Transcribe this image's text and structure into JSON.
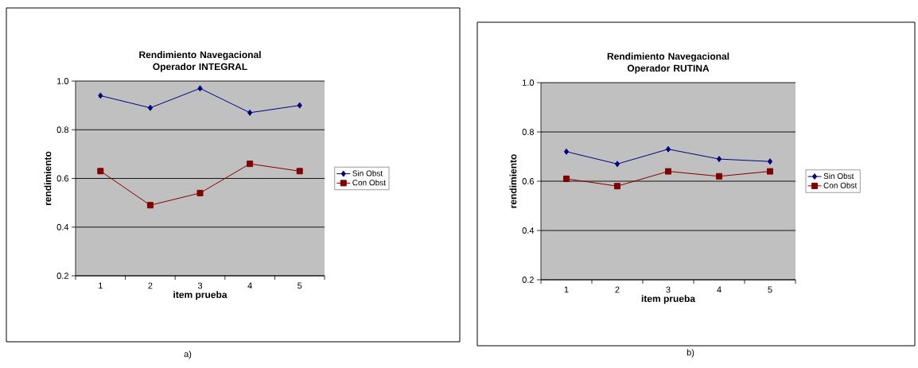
{
  "chart_data": [
    {
      "type": "line",
      "title": "Rendimiento Navegacional Operador INTEGRAL",
      "xlabel": "item prueba",
      "ylabel": "rendimiento",
      "categories": [
        "1",
        "2",
        "3",
        "4",
        "5"
      ],
      "series": [
        {
          "name": "Sin Obst",
          "color": "#000080",
          "marker": "diamond",
          "values": [
            0.94,
            0.89,
            0.97,
            0.87,
            0.9
          ]
        },
        {
          "name": "Con Obst",
          "color": "#800000",
          "marker": "square",
          "values": [
            0.63,
            0.49,
            0.54,
            0.66,
            0.63
          ]
        }
      ],
      "ylim": [
        0.2,
        1.0
      ],
      "yticks": [
        0.2,
        0.4,
        0.6,
        0.8,
        {
          "value": 1.0,
          "label": "1.0"
        }
      ],
      "grid": "y",
      "legend": "right",
      "annotations": [
        "a)"
      ]
    },
    {
      "type": "line",
      "title": "Rendimiento Navegacional Operador RUTINA",
      "xlabel": "item prueba",
      "ylabel": "rendimiento",
      "categories": [
        "1",
        "2",
        "3",
        "4",
        "5"
      ],
      "series": [
        {
          "name": "Sin Obst",
          "color": "#000080",
          "marker": "diamond",
          "values": [
            0.72,
            0.67,
            0.73,
            0.69,
            0.68
          ]
        },
        {
          "name": "Con Obst",
          "color": "#800000",
          "marker": "square",
          "values": [
            0.61,
            0.58,
            0.64,
            0.62,
            0.64
          ]
        }
      ],
      "ylim": [
        0.2,
        1.0
      ],
      "yticks": [
        0.2,
        0.4,
        0.6,
        0.8,
        {
          "value": 1.0,
          "label": "1.0"
        }
      ],
      "grid": "y",
      "legend": "right",
      "annotations": [
        "b)"
      ]
    }
  ]
}
